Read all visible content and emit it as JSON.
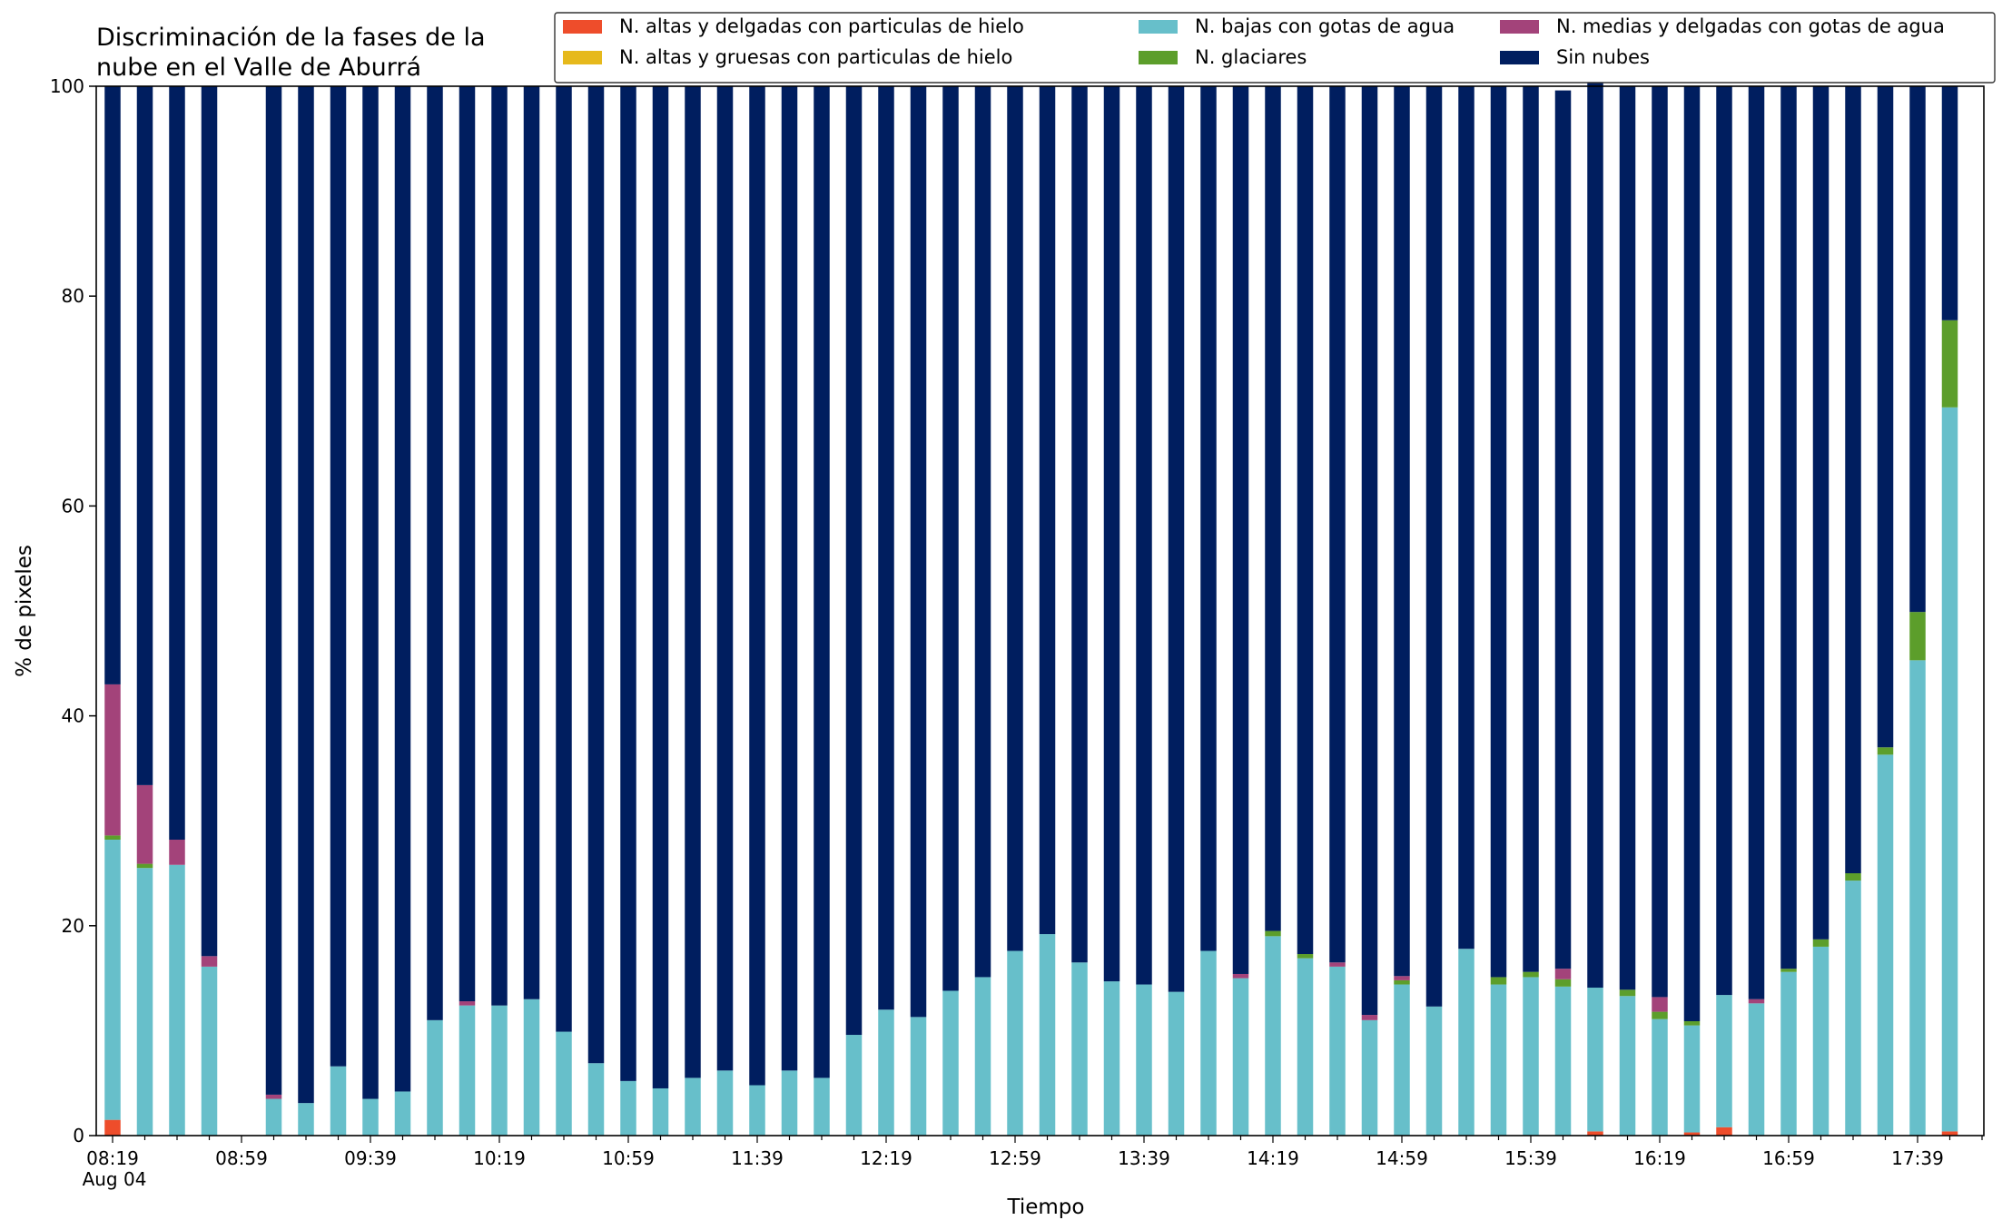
{
  "chart_data": {
    "type": "bar",
    "stacked": true,
    "title": [
      "Discriminación de la fases de la",
      "nube en el Valle de Aburrá"
    ],
    "xlabel": "Tiempo",
    "ylabel": "% de pixeles",
    "ylim": [
      0,
      100
    ],
    "yticks": [
      0,
      20,
      40,
      60,
      80,
      100
    ],
    "date_label": "Aug 04",
    "grid": false,
    "legend_position": "top-right",
    "categories": [
      "08:19",
      "08:29",
      "08:39",
      "08:49",
      "08:59",
      "09:09",
      "09:19",
      "09:29",
      "09:39",
      "09:49",
      "09:59",
      "10:09",
      "10:19",
      "10:29",
      "10:39",
      "10:49",
      "10:59",
      "11:09",
      "11:19",
      "11:29",
      "11:39",
      "11:49",
      "11:59",
      "12:09",
      "12:19",
      "12:29",
      "12:39",
      "12:49",
      "12:59",
      "13:09",
      "13:19",
      "13:29",
      "13:39",
      "13:49",
      "13:59",
      "14:09",
      "14:19",
      "14:29",
      "14:39",
      "14:49",
      "14:59",
      "15:09",
      "15:19",
      "15:29",
      "15:39",
      "15:49",
      "15:59",
      "16:09",
      "16:19",
      "16:29",
      "16:39",
      "16:49",
      "16:59",
      "17:09",
      "17:19",
      "17:29",
      "17:39",
      "17:49"
    ],
    "x_tick_labels": [
      "08:19",
      "08:59",
      "09:39",
      "10:19",
      "10:59",
      "11:39",
      "12:19",
      "12:59",
      "13:39",
      "14:19",
      "14:59",
      "15:39",
      "16:19",
      "16:59",
      "17:39"
    ],
    "series": [
      {
        "name": "N. altas y delgadas con particulas de hielo",
        "color": "#ee4d2b",
        "values": [
          1.5,
          0,
          0,
          0,
          null,
          0,
          0,
          0,
          0,
          0,
          0,
          0,
          0,
          0,
          0,
          0,
          0,
          0,
          0,
          0,
          0,
          0,
          0,
          0,
          0,
          0,
          0,
          0,
          0,
          0,
          0,
          0,
          0,
          0,
          0,
          0,
          0,
          0,
          0,
          0,
          0,
          0,
          0,
          0,
          0,
          0,
          0.4,
          0,
          0,
          0.3,
          0.8,
          0,
          0,
          0,
          0,
          0,
          0,
          0.4
        ]
      },
      {
        "name": "N. altas y gruesas con particulas de hielo",
        "color": "#e6b91c",
        "values": [
          0,
          0,
          0,
          0,
          null,
          0,
          0,
          0,
          0,
          0,
          0,
          0,
          0,
          0,
          0,
          0,
          0,
          0,
          0,
          0,
          0,
          0,
          0,
          0,
          0,
          0,
          0,
          0,
          0,
          0,
          0,
          0,
          0,
          0,
          0,
          0,
          0,
          0,
          0,
          0,
          0,
          0,
          0,
          0,
          0,
          0,
          0,
          0,
          0,
          0,
          0,
          0,
          0,
          0,
          0,
          0,
          0,
          0
        ]
      },
      {
        "name": "N. bajas con gotas de agua",
        "color": "#67bfca",
        "values": [
          26.7,
          25.5,
          25.8,
          16.1,
          null,
          3.5,
          3.1,
          6.6,
          3.5,
          4.2,
          11.0,
          12.4,
          12.4,
          13.0,
          9.9,
          6.9,
          5.2,
          4.5,
          5.5,
          6.2,
          4.8,
          6.2,
          5.5,
          9.6,
          12.0,
          11.3,
          13.8,
          15.1,
          17.6,
          19.2,
          16.5,
          14.7,
          14.4,
          13.7,
          17.6,
          15.0,
          19.0,
          16.9,
          16.1,
          11.0,
          14.4,
          12.3,
          17.8,
          14.4,
          15.1,
          14.2,
          13.7,
          13.3,
          11.1,
          10.2,
          12.6,
          12.6,
          15.6,
          18.0,
          24.3,
          36.3,
          45.3,
          69.0
        ]
      },
      {
        "name": "N. glaciares",
        "color": "#5c9e2b",
        "values": [
          0.4,
          0.4,
          0,
          0,
          null,
          0,
          0,
          0,
          0,
          0,
          0,
          0,
          0,
          0,
          0,
          0,
          0,
          0,
          0,
          0,
          0,
          0,
          0,
          0,
          0,
          0,
          0,
          0,
          0,
          0,
          0,
          0,
          0,
          0,
          0,
          0,
          0.5,
          0.4,
          0,
          0,
          0.4,
          0,
          0,
          0.7,
          0.5,
          0.7,
          0,
          0.6,
          0.7,
          0.4,
          0,
          0,
          0.3,
          0.7,
          0.7,
          0.7,
          4.6,
          8.3
        ]
      },
      {
        "name": "N. medias y delgadas con gotas de agua",
        "color": "#a3437a",
        "values": [
          14.4,
          7.5,
          2.4,
          1.0,
          null,
          0.4,
          0,
          0,
          0,
          0,
          0,
          0.4,
          0,
          0,
          0,
          0,
          0,
          0,
          0,
          0,
          0,
          0,
          0,
          0,
          0,
          0,
          0,
          0,
          0,
          0,
          0,
          0,
          0,
          0,
          0,
          0.4,
          0,
          0,
          0.4,
          0.5,
          0.4,
          0,
          0,
          0,
          0,
          1.0,
          0,
          0,
          1.4,
          0,
          0,
          0.4,
          0,
          0,
          0,
          0,
          0,
          0
        ]
      },
      {
        "name": "Sin nubes",
        "color": "#001e5f",
        "values": [
          57.0,
          66.6,
          71.8,
          82.9,
          null,
          96.1,
          96.9,
          93.4,
          96.5,
          95.8,
          89.0,
          87.2,
          87.6,
          87.0,
          90.1,
          93.1,
          94.8,
          95.5,
          94.5,
          93.8,
          95.2,
          93.8,
          94.5,
          90.4,
          88.0,
          88.7,
          86.2,
          84.9,
          82.4,
          80.8,
          83.5,
          85.3,
          85.6,
          86.3,
          82.4,
          84.6,
          80.5,
          82.7,
          83.5,
          88.5,
          84.8,
          87.7,
          82.2,
          84.9,
          84.4,
          83.7,
          86.3,
          86.1,
          86.8,
          89.1,
          86.6,
          87.0,
          84.1,
          81.3,
          75.0,
          63.0,
          50.1,
          22.3
        ]
      }
    ]
  }
}
